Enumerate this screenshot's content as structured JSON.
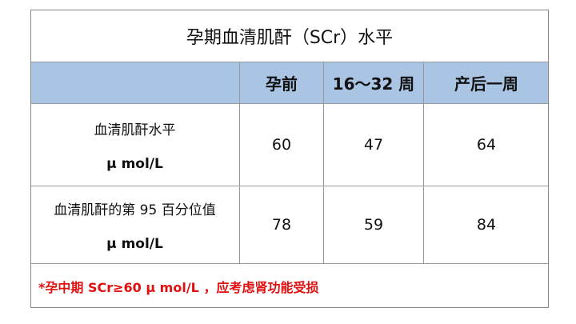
{
  "table": {
    "title": "孕期血清肌酐（SCr）水平",
    "columns": [
      "孕前",
      "16～32 周",
      "产后一周"
    ],
    "rows": [
      {
        "label": [
          "血清肌酐水平",
          "μ mol/L"
        ],
        "values": [
          60,
          47,
          64
        ]
      },
      {
        "label": [
          "血清肌酐的第 95 百分位值",
          "μ mol/L"
        ],
        "values": [
          78,
          59,
          84
        ]
      }
    ],
    "footnote": "*孕中期 SCr≥60  μ mol/L ，应考虑肾功能受损"
  }
}
